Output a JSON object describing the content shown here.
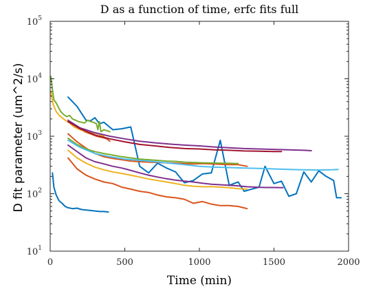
{
  "chart_data": {
    "type": "line",
    "title": "D as a function of time, erfc fits full",
    "xlabel": "Time (min)",
    "ylabel": "D fit parameter (um^2/s)",
    "xlim": [
      0,
      2000
    ],
    "ylim": [
      10,
      100000
    ],
    "yscale": "log",
    "grid": false,
    "xticks": [
      {
        "value": 0,
        "label": "0"
      },
      {
        "value": 500,
        "label": "500"
      },
      {
        "value": 1000,
        "label": "1000"
      },
      {
        "value": 1500,
        "label": "1500"
      },
      {
        "value": 2000,
        "label": "2000"
      }
    ],
    "yticks": [
      {
        "value": 10,
        "base": "10",
        "exp": "1"
      },
      {
        "value": 100,
        "base": "10",
        "exp": "2"
      },
      {
        "value": 1000,
        "base": "10",
        "exp": "3"
      },
      {
        "value": 10000,
        "base": "10",
        "exp": "4"
      },
      {
        "value": 100000,
        "base": "10",
        "exp": "5"
      }
    ],
    "series": [
      {
        "color": "#0072BD",
        "x": [
          15,
          25,
          40,
          60,
          80,
          100,
          120,
          150,
          180,
          210,
          240,
          270,
          300,
          330,
          360,
          390
        ],
        "y": [
          230,
          130,
          95,
          75,
          68,
          60,
          57,
          55,
          56,
          53,
          52,
          51,
          50,
          49,
          49,
          48
        ]
      },
      {
        "color": "#0072BD",
        "x": [
          120,
          180,
          240,
          270,
          300,
          330,
          360,
          420,
          480,
          540,
          600,
          660,
          720,
          780,
          840,
          900,
          960,
          1020,
          1080,
          1140,
          1200,
          1260,
          1300,
          1350,
          1400,
          1440,
          1500,
          1550,
          1600,
          1650,
          1700,
          1750,
          1800,
          1850,
          1900,
          1920,
          1950
        ],
        "y": [
          4800,
          3300,
          1900,
          1850,
          2100,
          1650,
          1750,
          1300,
          1350,
          1450,
          300,
          230,
          340,
          280,
          240,
          155,
          170,
          220,
          230,
          850,
          140,
          160,
          110,
          120,
          130,
          300,
          150,
          165,
          90,
          100,
          240,
          160,
          250,
          200,
          170,
          85,
          85
        ]
      },
      {
        "color": "#D95319",
        "x": [
          120,
          180,
          240,
          300,
          360,
          420,
          480,
          540,
          600,
          660,
          720,
          780,
          840,
          900,
          960,
          1020,
          1080,
          1140,
          1200,
          1260,
          1320
        ],
        "y": [
          420,
          270,
          210,
          180,
          160,
          150,
          130,
          120,
          110,
          105,
          95,
          88,
          85,
          80,
          68,
          73,
          66,
          62,
          62,
          60,
          55
        ]
      },
      {
        "color": "#D95319",
        "x": [
          120,
          180,
          240,
          300,
          360,
          420,
          480,
          540,
          600,
          660,
          720,
          780,
          840,
          900,
          960,
          1020,
          1080,
          1140,
          1200,
          1260,
          1320
        ],
        "y": [
          1100,
          800,
          620,
          500,
          440,
          410,
          390,
          370,
          360,
          355,
          350,
          345,
          340,
          335,
          330,
          335,
          330,
          325,
          320,
          320,
          300
        ]
      },
      {
        "color": "#D95319",
        "x": [
          190,
          230,
          270,
          310,
          350,
          380,
          400
        ],
        "y": [
          1450,
          1200,
          1100,
          1000,
          950,
          900,
          820
        ]
      },
      {
        "color": "#EDB120",
        "x": [
          5,
          20,
          40,
          60,
          80,
          100,
          130,
          160,
          200,
          240,
          280,
          320,
          360
        ],
        "y": [
          6000,
          3600,
          2700,
          2300,
          2100,
          1900,
          1700,
          1450,
          1300,
          1200,
          1150,
          1100,
          1000
        ]
      },
      {
        "color": "#EDB120",
        "x": [
          120,
          180,
          240,
          300,
          360,
          420,
          480,
          540,
          600,
          660,
          720,
          780,
          840,
          900,
          960,
          1020,
          1080,
          1140,
          1200,
          1260,
          1320
        ],
        "y": [
          570,
          420,
          340,
          290,
          260,
          240,
          225,
          210,
          195,
          180,
          170,
          160,
          150,
          140,
          135,
          132,
          133,
          130,
          127,
          122,
          120
        ]
      },
      {
        "color": "#7E2F8E",
        "x": [
          120,
          200,
          300,
          400,
          500,
          600,
          700,
          800,
          900,
          1000,
          1100,
          1200,
          1300,
          1400,
          1500,
          1600,
          1700,
          1750
        ],
        "y": [
          1900,
          1400,
          1150,
          1000,
          900,
          820,
          770,
          730,
          700,
          680,
          650,
          630,
          610,
          600,
          590,
          580,
          570,
          560
        ]
      },
      {
        "color": "#7E2F8E",
        "x": [
          120,
          180,
          240,
          300,
          360,
          420,
          480,
          540,
          600,
          660,
          720,
          780,
          840,
          900,
          960,
          1020,
          1080,
          1140,
          1200,
          1260,
          1320,
          1380,
          1440,
          1500,
          1560
        ],
        "y": [
          700,
          540,
          420,
          360,
          330,
          300,
          280,
          255,
          230,
          210,
          195,
          182,
          172,
          165,
          160,
          152,
          146,
          143,
          140,
          137,
          132,
          130,
          128,
          128,
          127
        ]
      },
      {
        "color": "#77AC30",
        "x": [
          5,
          15,
          25,
          40,
          55,
          70,
          90,
          110,
          130,
          150,
          170,
          190,
          210,
          230,
          250,
          270,
          290,
          310,
          320,
          330,
          340,
          360,
          380,
          400
        ],
        "y": [
          11000,
          6500,
          4300,
          3800,
          3200,
          2700,
          2400,
          2200,
          2300,
          2000,
          1900,
          1800,
          1750,
          1700,
          1900,
          1800,
          1750,
          1650,
          1300,
          1800,
          1200,
          1300,
          1250,
          1200
        ]
      },
      {
        "color": "#77AC30",
        "x": [
          120,
          180,
          240,
          300,
          360,
          420,
          480,
          540,
          600,
          660,
          720,
          780,
          840,
          900,
          960,
          1020,
          1080,
          1140,
          1200,
          1260
        ],
        "y": [
          920,
          720,
          600,
          540,
          500,
          470,
          440,
          420,
          400,
          390,
          380,
          370,
          365,
          355,
          350,
          345,
          342,
          340,
          338,
          335
        ]
      },
      {
        "color": "#4DBEEE",
        "x": [
          120,
          200,
          300,
          400,
          500,
          600,
          700,
          800,
          900,
          1000,
          1100,
          1200,
          1300,
          1400,
          1500,
          1600,
          1700,
          1800,
          1900,
          1930
        ],
        "y": [
          850,
          640,
          500,
          440,
          400,
          380,
          360,
          340,
          320,
          300,
          290,
          285,
          280,
          275,
          270,
          265,
          260,
          258,
          262,
          265
        ]
      },
      {
        "color": "#A2142F",
        "x": [
          120,
          200,
          300,
          400,
          500,
          600,
          700,
          800,
          900,
          1000,
          1100,
          1200,
          1300,
          1400,
          1500,
          1550
        ],
        "y": [
          1800,
          1350,
          1050,
          900,
          800,
          720,
          680,
          640,
          610,
          600,
          580,
          570,
          555,
          550,
          540,
          540
        ]
      }
    ]
  }
}
